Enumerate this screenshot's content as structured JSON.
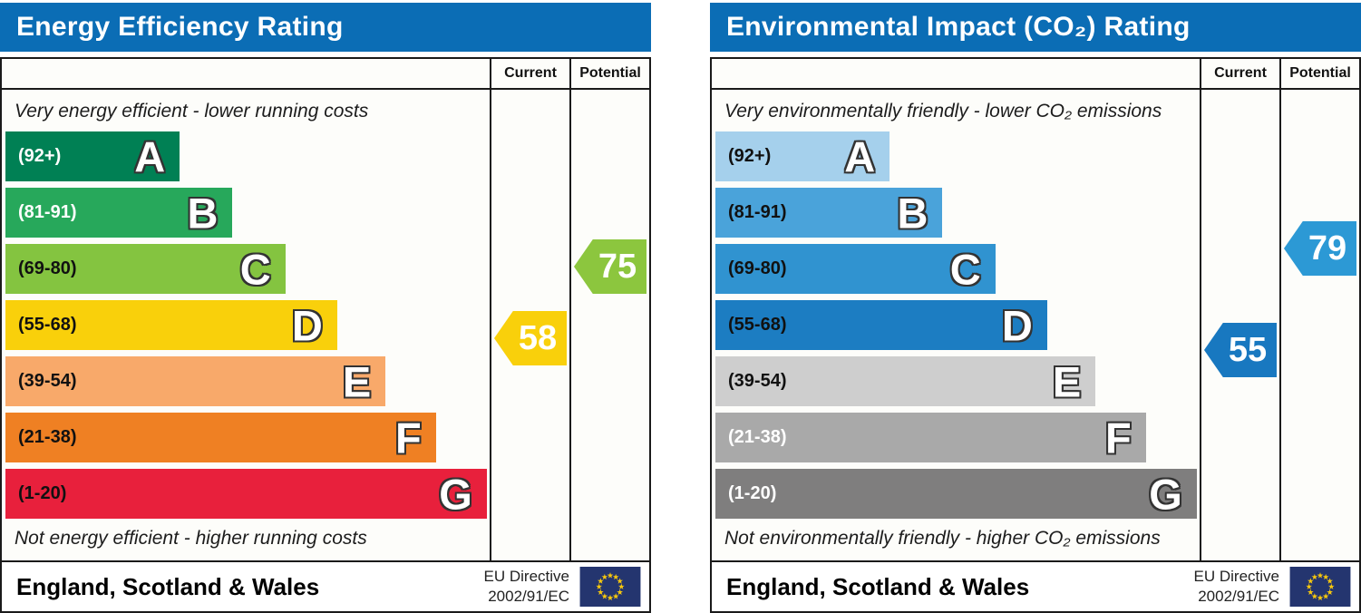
{
  "chart_data": [
    {
      "type": "bar",
      "title": "Energy Efficiency Rating",
      "header_color": "#0b6db5",
      "columns": {
        "current": "Current",
        "potential": "Potential"
      },
      "top_note": "Very energy efficient - lower running costs",
      "bottom_note": "Not energy efficient - higher running costs",
      "bands": [
        {
          "letter": "A",
          "range_label": "(92+)",
          "min": 92,
          "max": 100,
          "width_pct": 36.0,
          "color": "#008054",
          "text_color": "#ffffff"
        },
        {
          "letter": "B",
          "range_label": "(81-91)",
          "min": 81,
          "max": 91,
          "width_pct": 46.9,
          "color": "#27a85b",
          "text_color": "#ffffff"
        },
        {
          "letter": "C",
          "range_label": "(69-80)",
          "min": 69,
          "max": 80,
          "width_pct": 57.8,
          "color": "#84c440",
          "text_color": "#111111"
        },
        {
          "letter": "D",
          "range_label": "(55-68)",
          "min": 55,
          "max": 68,
          "width_pct": 68.5,
          "color": "#f9d00b",
          "text_color": "#111111"
        },
        {
          "letter": "E",
          "range_label": "(39-54)",
          "min": 39,
          "max": 54,
          "width_pct": 78.5,
          "color": "#f8a96a",
          "text_color": "#111111"
        },
        {
          "letter": "F",
          "range_label": "(21-38)",
          "min": 21,
          "max": 38,
          "width_pct": 88.9,
          "color": "#ef8023",
          "text_color": "#111111"
        },
        {
          "letter": "G",
          "range_label": "(1-20)",
          "min": 1,
          "max": 20,
          "width_pct": 99.4,
          "color": "#e8203c",
          "text_color": "#111111"
        }
      ],
      "current": {
        "value": 58,
        "color": "#f9d00b",
        "band": "D"
      },
      "potential": {
        "value": 75,
        "color": "#8cc63e",
        "band": "C"
      },
      "footer": {
        "region": "England, Scotland & Wales",
        "directive_line1": "EU Directive",
        "directive_line2": "2002/91/EC"
      }
    },
    {
      "type": "bar",
      "title": "Environmental Impact (CO₂) Rating",
      "header_color": "#0b6db5",
      "columns": {
        "current": "Current",
        "potential": "Potential"
      },
      "top_note": "Very environmentally friendly - lower CO₂ emissions",
      "bottom_note": "Not environmentally friendly - higher CO₂ emissions",
      "bands": [
        {
          "letter": "A",
          "range_label": "(92+)",
          "min": 92,
          "max": 100,
          "width_pct": 36.0,
          "color": "#a5d0ec",
          "text_color": "#111111"
        },
        {
          "letter": "B",
          "range_label": "(81-91)",
          "min": 81,
          "max": 91,
          "width_pct": 46.9,
          "color": "#4aa3da",
          "text_color": "#111111"
        },
        {
          "letter": "C",
          "range_label": "(69-80)",
          "min": 69,
          "max": 80,
          "width_pct": 57.8,
          "color": "#3093d0",
          "text_color": "#111111"
        },
        {
          "letter": "D",
          "range_label": "(55-68)",
          "min": 55,
          "max": 68,
          "width_pct": 68.5,
          "color": "#1c7dc2",
          "text_color": "#111111"
        },
        {
          "letter": "E",
          "range_label": "(39-54)",
          "min": 39,
          "max": 54,
          "width_pct": 78.5,
          "color": "#cecece",
          "text_color": "#111111"
        },
        {
          "letter": "F",
          "range_label": "(21-38)",
          "min": 21,
          "max": 38,
          "width_pct": 88.9,
          "color": "#a9a9a9",
          "text_color": "#ffffff"
        },
        {
          "letter": "G",
          "range_label": "(1-20)",
          "min": 1,
          "max": 20,
          "width_pct": 99.4,
          "color": "#7f7e7e",
          "text_color": "#ffffff"
        }
      ],
      "current": {
        "value": 55,
        "color": "#1878c0",
        "band": "D"
      },
      "potential": {
        "value": 79,
        "color": "#2c99d5",
        "band": "C"
      },
      "footer": {
        "region": "England, Scotland & Wales",
        "directive_line1": "EU Directive",
        "directive_line2": "2002/91/EC"
      }
    }
  ],
  "eu_flag_colors": {
    "field": "#24356f",
    "stars": "#f8c80d"
  }
}
